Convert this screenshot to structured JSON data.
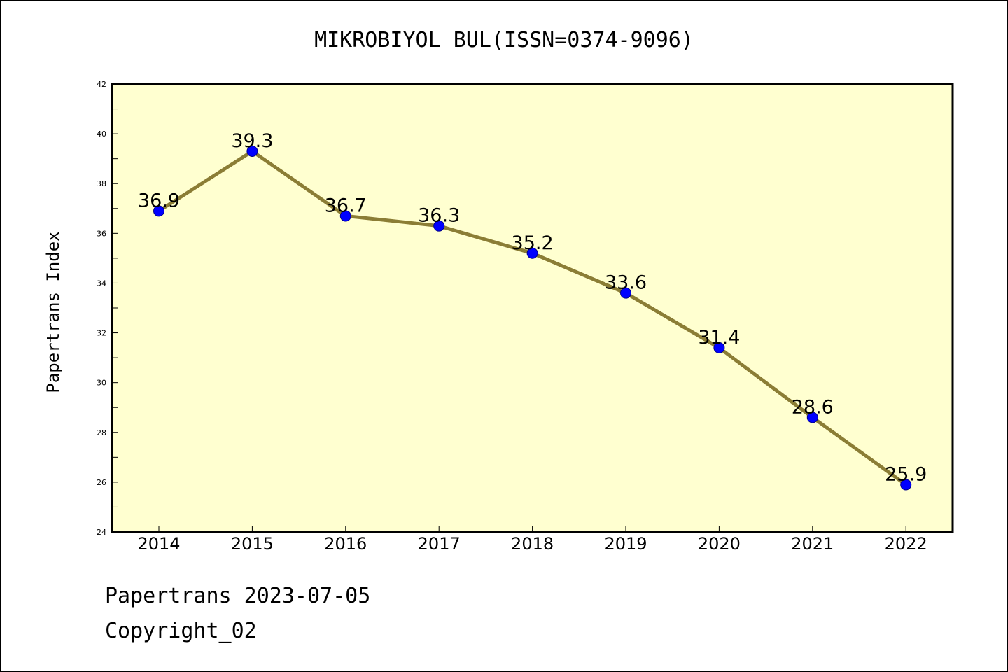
{
  "footer": {
    "line1": "Papertrans 2023-07-05",
    "line2": "Copyright_02"
  },
  "chart_data": {
    "type": "line",
    "title": "MIKROBIYOL BUL(ISSN=0374-9096)",
    "xlabel": "",
    "ylabel": "Papertrans Index",
    "categories": [
      "2014",
      "2015",
      "2016",
      "2017",
      "2018",
      "2019",
      "2020",
      "2021",
      "2022"
    ],
    "values": [
      36.9,
      39.3,
      36.7,
      36.3,
      35.2,
      33.6,
      31.4,
      28.6,
      25.9
    ],
    "data_labels": [
      "36.9",
      "39.3",
      "36.7",
      "36.3",
      "35.2",
      "33.6",
      "31.4",
      "28.6",
      "25.9"
    ],
    "ylim": [
      24,
      42
    ],
    "yticks": [
      "24",
      "26",
      "28",
      "30",
      "32",
      "34",
      "36",
      "38",
      "40",
      "42"
    ],
    "grid": false,
    "legend": "none",
    "colors": {
      "plot_background": "#ffffd0",
      "line": "#8b7d35",
      "marker": "#0000ff"
    }
  }
}
